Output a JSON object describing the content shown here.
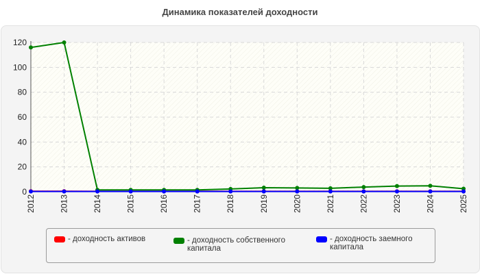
{
  "chart_data": {
    "type": "line",
    "title": "Динамика показателей доходности",
    "categories": [
      "2012",
      "2013",
      "2014",
      "2015",
      "2016",
      "2017",
      "2018",
      "2019",
      "2020",
      "2021",
      "2022",
      "2023",
      "2024",
      "2025"
    ],
    "yticks": [
      "0",
      "20",
      "40",
      "60",
      "80",
      "100",
      "120"
    ],
    "ylim": [
      0,
      120
    ],
    "grid": true,
    "legend_position": "bottom",
    "series": [
      {
        "name": "- доходность активов",
        "color": "#ff0000",
        "values": [
          0.5,
          0.5,
          0.4,
          0.4,
          0.4,
          0.4,
          0.4,
          0.4,
          0.4,
          0.4,
          0.4,
          0.4,
          0.4,
          0.4
        ]
      },
      {
        "name": "- доходность собственного\nкапитала",
        "color": "#008000",
        "values": [
          116,
          120,
          1.5,
          1.5,
          1.5,
          1.5,
          2.3,
          3.3,
          3.1,
          2.8,
          3.8,
          4.6,
          4.8,
          2.5
        ]
      },
      {
        "name": "- доходность заемного\nкапитала",
        "color": "#0000ff",
        "values": [
          0.3,
          0.3,
          0.3,
          0.3,
          0.3,
          0.3,
          0.3,
          0.3,
          0.3,
          0.3,
          0.3,
          0.3,
          0.3,
          0.3
        ]
      }
    ]
  }
}
